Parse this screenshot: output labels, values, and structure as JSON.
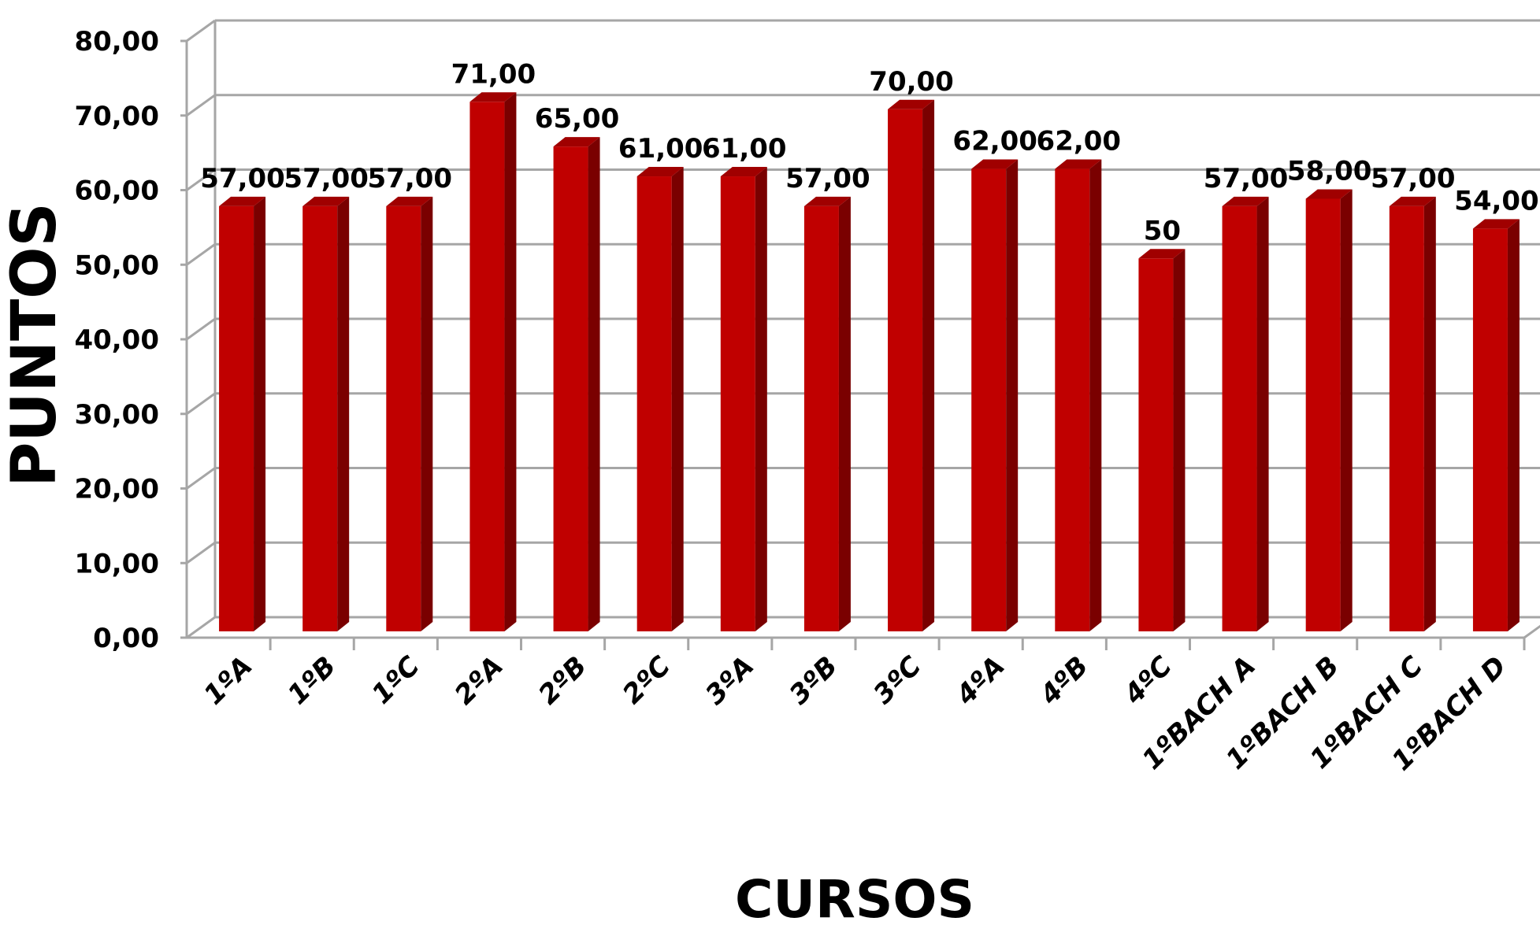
{
  "chart_data": {
    "type": "bar",
    "xlabel": "CURSOS",
    "ylabel": "PUNTOS",
    "ylim": [
      0,
      80
    ],
    "yticks": [
      "0,00",
      "10,00",
      "20,00",
      "30,00",
      "40,00",
      "50,00",
      "60,00",
      "70,00",
      "80,00"
    ],
    "grid": true,
    "legend": "none",
    "categories": [
      "1ºA",
      "1ºB",
      "1ºC",
      "2ºA",
      "2ºB",
      "2ºC",
      "3ºA",
      "3ºB",
      "3ºC",
      "4ºA",
      "4ºB",
      "4ºC",
      "1ºBACH A",
      "1ºBACH B",
      "1ºBACH C",
      "1ºBACH D"
    ],
    "values": [
      57,
      57,
      57,
      71,
      65,
      61,
      61,
      57,
      70,
      62,
      62,
      50,
      57,
      58,
      57,
      54
    ],
    "data_labels": [
      "57,00",
      "57,00",
      "57,00",
      "71,00",
      "65,00",
      "61,00",
      "61,00",
      "57,00",
      "70,00",
      "62,00",
      "62,00",
      "50",
      "57,00",
      "58,00",
      "57,00",
      "54,00"
    ],
    "colors": {
      "bar_front": "#c00000",
      "bar_side": "#7a0000",
      "bar_top": "#a00000",
      "grid": "#a6a6a6"
    }
  }
}
